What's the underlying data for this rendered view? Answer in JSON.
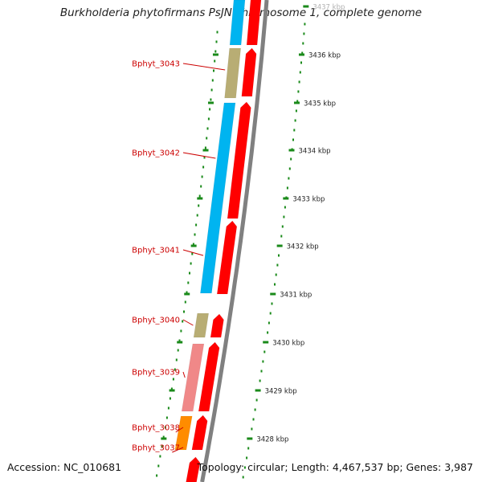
{
  "title": "Burkholderia phytofirmans PsJN chromosome 1, complete genome",
  "footer": {
    "accession": "Accession: NC_010681",
    "summary": "Topology: circular; Length: 4,467,537 bp; Genes: 3,987"
  },
  "colors": {
    "forward_cds": "#ff0000",
    "reverse_blue": "#00b4f0",
    "reverse_khaki": "#b8ad74",
    "reverse_pink": "#f08888",
    "reverse_orange": "#ff8c00",
    "backbone": "#808080",
    "tick": "#1a8a1a",
    "gene_label": "#cc0000",
    "tick_label": "#222222"
  },
  "tick_labels": [
    "3437 kbp",
    "3436 kbp",
    "3435 kbp",
    "3434 kbp",
    "3433 kbp",
    "3432 kbp",
    "3431 kbp",
    "3430 kbp",
    "3429 kbp",
    "3428 kbp"
  ],
  "gene_labels": [
    "Bphyt_3043",
    "Bphyt_3042",
    "Bphyt_3041",
    "Bphyt_3040",
    "Bphyt_3039",
    "Bphyt_3038",
    "Bphyt_3037"
  ]
}
